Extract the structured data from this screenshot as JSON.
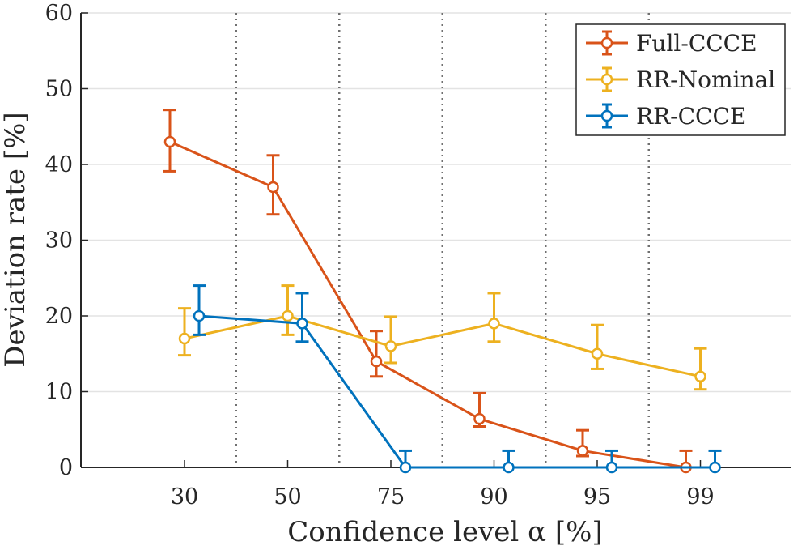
{
  "chart_data": {
    "type": "line",
    "xlabel": "Confidence level α [%]",
    "ylabel": "Deviation rate [%]",
    "ylim": [
      0,
      60
    ],
    "yticks": [
      0,
      10,
      20,
      30,
      40,
      50,
      60
    ],
    "categories": [
      "30",
      "50",
      "75",
      "90",
      "95",
      "99"
    ],
    "grid": "horizontal",
    "category_separators": "dotted vertical",
    "legend_position": "top-right",
    "series": [
      {
        "name": "Full-CCCE",
        "color": "#d95319",
        "offset": -1,
        "values": [
          43,
          37,
          14,
          6.4,
          2.2,
          0
        ],
        "err_low": [
          3.9,
          3.6,
          2.0,
          1.0,
          0.7,
          0
        ],
        "err_high": [
          4.2,
          4.2,
          4.0,
          3.4,
          2.7,
          2.2
        ]
      },
      {
        "name": "RR-Nominal",
        "color": "#edb120",
        "offset": 0,
        "values": [
          17,
          20,
          16,
          19,
          15,
          12
        ],
        "err_low": [
          2.2,
          2.5,
          2.2,
          2.4,
          2.0,
          1.7
        ],
        "err_high": [
          4.0,
          4.0,
          3.9,
          4.0,
          3.8,
          3.7
        ]
      },
      {
        "name": "RR-CCCE",
        "color": "#0072bd",
        "offset": 1,
        "values": [
          20,
          19,
          0,
          0,
          0,
          0
        ],
        "err_low": [
          2.5,
          2.4,
          0,
          0,
          0,
          0
        ],
        "err_high": [
          4.0,
          4.0,
          2.2,
          2.2,
          2.2,
          2.2
        ]
      }
    ]
  }
}
